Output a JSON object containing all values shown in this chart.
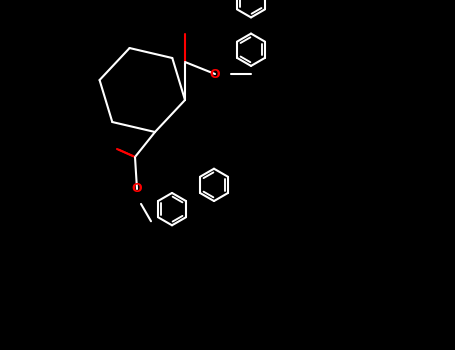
{
  "figwidth": 4.55,
  "figheight": 3.5,
  "dpi": 100,
  "bg_color": "#000000",
  "bond_color": "#ffffff",
  "O_color": "#ff0000",
  "lw": 1.5,
  "lw_double": 1.2
}
